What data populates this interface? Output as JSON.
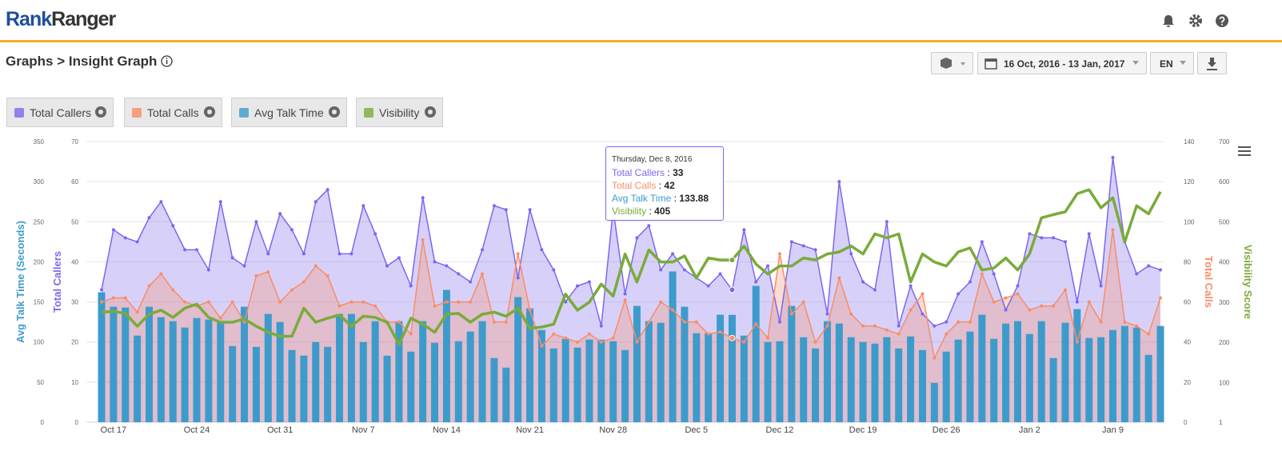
{
  "header": {
    "logo_a": "Rank",
    "logo_b": "Ranger"
  },
  "breadcrumb": "Graphs > Insight Graph",
  "controls": {
    "date_range": "16 Oct, 2016 - 13 Jan, 2017",
    "language": "EN"
  },
  "tooltip": {
    "title": "Thursday, Dec 8, 2016",
    "separator": ":"
  },
  "chart_data": {
    "type": "combo",
    "grid": true,
    "categories": [
      null,
      "Oct 17",
      null,
      null,
      null,
      null,
      null,
      null,
      "Oct 24",
      null,
      null,
      null,
      null,
      null,
      null,
      "Oct 31",
      null,
      null,
      null,
      null,
      null,
      null,
      "Nov 7",
      null,
      null,
      null,
      null,
      null,
      null,
      "Nov 14",
      null,
      null,
      null,
      null,
      null,
      null,
      "Nov 21",
      null,
      null,
      null,
      null,
      null,
      null,
      "Nov 28",
      null,
      null,
      null,
      null,
      null,
      null,
      "Dec 5",
      null,
      null,
      null,
      null,
      null,
      null,
      "Dec 12",
      null,
      null,
      null,
      null,
      null,
      null,
      "Dec 19",
      null,
      null,
      null,
      null,
      null,
      null,
      "Dec 26",
      null,
      null,
      null,
      null,
      null,
      null,
      "Jan 2",
      null,
      null,
      null,
      null,
      null,
      null,
      "Jan 9",
      null,
      null,
      null,
      null
    ],
    "ylabel": "Total Callers",
    "ylim": [
      0,
      70
    ],
    "yticks": [
      0,
      10,
      20,
      30,
      40,
      50,
      60,
      70
    ],
    "y2label": "Total Calls",
    "y2lim": [
      0,
      140
    ],
    "y2ticks": [
      0,
      20,
      40,
      60,
      80,
      100,
      120,
      140
    ],
    "y3label": "Avg Talk Time (Seconds)",
    "y3lim": [
      0,
      350
    ],
    "y3ticks": [
      0,
      50,
      100,
      150,
      200,
      250,
      300,
      350
    ],
    "y4label": "Visibility Score",
    "y4lim": [
      1,
      700
    ],
    "y4ticks": [
      1,
      100,
      200,
      300,
      400,
      500,
      600,
      700
    ],
    "series": [
      {
        "name": "Total Callers",
        "color": "#7b68ee",
        "axis": "y",
        "style": "area",
        "values": [
          33,
          48,
          46,
          45,
          51,
          55,
          49,
          43,
          43,
          38,
          55,
          41,
          39,
          50,
          42,
          52,
          48,
          42,
          55,
          58,
          42,
          42,
          54,
          47,
          39,
          41,
          34,
          56,
          40,
          39,
          37,
          35,
          43,
          54,
          53,
          36,
          53,
          43,
          38,
          30,
          34,
          35,
          24,
          53,
          32,
          46,
          49,
          38,
          42,
          38,
          36,
          34,
          37,
          33,
          48,
          35,
          39,
          25,
          45,
          44,
          43,
          27,
          60,
          42,
          35,
          33,
          50,
          24,
          34,
          27,
          24,
          25,
          32,
          35,
          45,
          37,
          28,
          34,
          47,
          46,
          46,
          45,
          30,
          47,
          34,
          66,
          45,
          37,
          39,
          38
        ]
      },
      {
        "name": "Total Calls",
        "color": "#f98d68",
        "axis": "y2",
        "style": "area",
        "values": [
          60,
          62,
          62,
          55,
          68,
          74,
          66,
          60,
          58,
          60,
          52,
          60,
          50,
          73,
          75,
          60,
          66,
          70,
          78,
          73,
          58,
          60,
          60,
          58,
          50,
          50,
          44,
          91,
          58,
          60,
          60,
          60,
          74,
          50,
          50,
          84,
          56,
          38,
          44,
          42,
          40,
          44,
          40,
          42,
          61,
          40,
          50,
          60,
          56,
          50,
          50,
          44,
          45,
          42,
          40,
          49,
          42,
          84,
          54,
          60,
          40,
          48,
          72,
          54,
          48,
          48,
          46,
          44,
          56,
          64,
          32,
          44,
          50,
          50,
          74,
          60,
          62,
          64,
          56,
          58,
          58,
          66,
          40,
          60,
          50,
          96,
          50,
          48,
          44,
          62
        ]
      },
      {
        "name": "Avg Talk Time",
        "color": "#3d9bcc",
        "axis": "y3",
        "style": "bar",
        "values": [
          162,
          144,
          143,
          108,
          144,
          131,
          126,
          118,
          130,
          128,
          126,
          95,
          144,
          94,
          135,
          125,
          90,
          83,
          100,
          94,
          135,
          135,
          100,
          126,
          83,
          126,
          88,
          126,
          99,
          165,
          101,
          113,
          126,
          80,
          68,
          156,
          142,
          115,
          92,
          104,
          93,
          103,
          103,
          101,
          90,
          145,
          126,
          124,
          188,
          144,
          111,
          111,
          134,
          133.88,
          108,
          170,
          100,
          101,
          145,
          106,
          92,
          126,
          123,
          106,
          100,
          98,
          106,
          92,
          107,
          90,
          49,
          88,
          103,
          113,
          134,
          104,
          123,
          126,
          110,
          126,
          80,
          124,
          141,
          105,
          106,
          115,
          120,
          118,
          84,
          120
        ]
      },
      {
        "name": "Visibility",
        "color": "#7aab3a",
        "axis": "y4",
        "style": "line",
        "values": [
          275,
          277,
          272,
          240,
          270,
          280,
          262,
          285,
          295,
          262,
          250,
          250,
          258,
          240,
          225,
          215,
          215,
          285,
          250,
          260,
          268,
          240,
          265,
          262,
          250,
          195,
          260,
          245,
          225,
          270,
          272,
          250,
          270,
          275,
          265,
          285,
          235,
          238,
          245,
          320,
          280,
          300,
          345,
          315,
          420,
          350,
          430,
          400,
          400,
          415,
          360,
          410,
          405,
          405,
          440,
          395,
          370,
          390,
          390,
          410,
          405,
          420,
          425,
          440,
          420,
          470,
          460,
          470,
          350,
          420,
          400,
          390,
          425,
          435,
          380,
          385,
          410,
          380,
          420,
          510,
          518,
          525,
          570,
          580,
          535,
          560,
          450,
          540,
          520,
          575
        ]
      }
    ]
  }
}
